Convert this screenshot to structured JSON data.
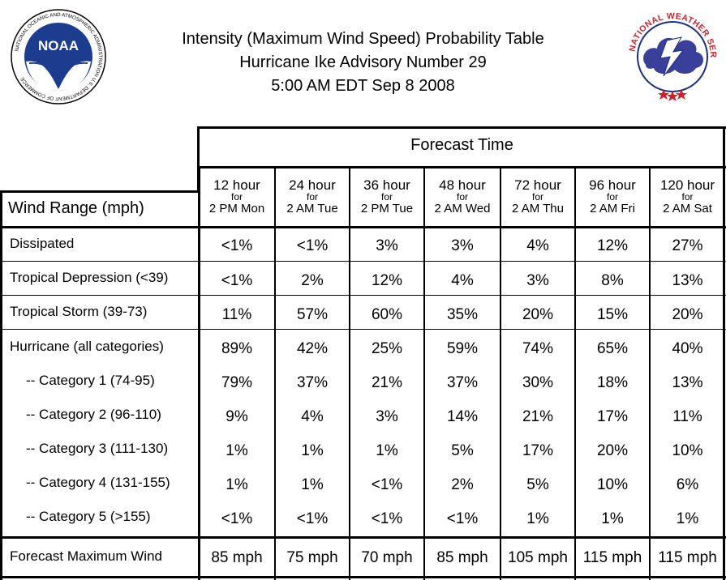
{
  "title": {
    "line1": "Intensity (Maximum Wind Speed) Probability Table",
    "line2": "Hurricane Ike Advisory Number 29",
    "line3": "5:00 AM EDT Sep 8 2008"
  },
  "logos": {
    "noaa_text": "NOAA",
    "noaa_ring": "NATIONAL OCEANIC AND ATMOSPHERIC ADMINISTRATION U.S. DEPARTMENT OF COMMERCE",
    "nws_ring": "NATIONAL WEATHER SERVICE"
  },
  "table": {
    "forecast_time_label": "Forecast Time",
    "wind_range_label": "Wind Range (mph)",
    "columns": [
      {
        "hour": "12 hour",
        "for": "for",
        "date": "2 PM Mon"
      },
      {
        "hour": "24 hour",
        "for": "for",
        "date": "2 AM Tue"
      },
      {
        "hour": "36 hour",
        "for": "for",
        "date": "2 PM Tue"
      },
      {
        "hour": "48 hour",
        "for": "for",
        "date": "2 AM Wed"
      },
      {
        "hour": "72 hour",
        "for": "for",
        "date": "2 AM Thu"
      },
      {
        "hour": "96 hour",
        "for": "for",
        "date": "2 AM Fri"
      },
      {
        "hour": "120 hour",
        "for": "for",
        "date": "2 AM Sat"
      }
    ],
    "rows": [
      {
        "label": "Dissipated",
        "values": [
          "<1%",
          "<1%",
          "3%",
          "3%",
          "4%",
          "12%",
          "27%"
        ]
      },
      {
        "label": "Tropical Depression (<39)",
        "values": [
          "<1%",
          "2%",
          "12%",
          "4%",
          "3%",
          "8%",
          "13%"
        ]
      },
      {
        "label": "Tropical Storm (39-73)",
        "values": [
          "11%",
          "57%",
          "60%",
          "35%",
          "20%",
          "15%",
          "20%"
        ]
      },
      {
        "label": "Hurricane (all categories)",
        "values": [
          "89%",
          "42%",
          "25%",
          "59%",
          "74%",
          "65%",
          "40%"
        ]
      },
      {
        "label": "-- Category 1 (74-95)",
        "values": [
          "79%",
          "37%",
          "21%",
          "37%",
          "30%",
          "18%",
          "13%"
        ]
      },
      {
        "label": "-- Category 2 (96-110)",
        "values": [
          "9%",
          "4%",
          "3%",
          "14%",
          "21%",
          "17%",
          "11%"
        ]
      },
      {
        "label": "-- Category 3 (111-130)",
        "values": [
          "1%",
          "1%",
          "1%",
          "5%",
          "17%",
          "20%",
          "10%"
        ]
      },
      {
        "label": "-- Category 4 (131-155)",
        "values": [
          "1%",
          "1%",
          "<1%",
          "2%",
          "5%",
          "10%",
          "6%"
        ]
      },
      {
        "label": "-- Category 5 (>155)",
        "values": [
          "<1%",
          "<1%",
          "<1%",
          "<1%",
          "1%",
          "1%",
          "1%"
        ]
      },
      {
        "label": "Forecast Maximum Wind",
        "values": [
          "85 mph",
          "75 mph",
          "70 mph",
          "85 mph",
          "105 mph",
          "115 mph",
          "115 mph"
        ]
      }
    ]
  }
}
